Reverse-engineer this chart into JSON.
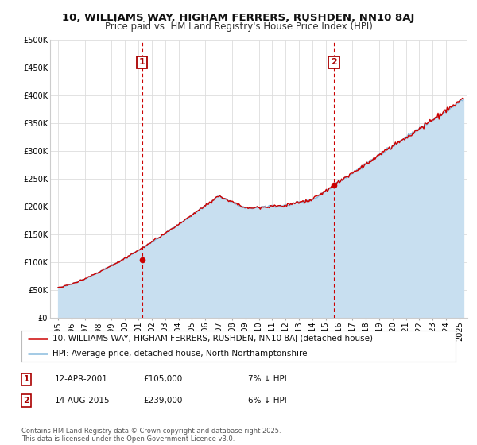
{
  "title": "10, WILLIAMS WAY, HIGHAM FERRERS, RUSHDEN, NN10 8AJ",
  "subtitle": "Price paid vs. HM Land Registry's House Price Index (HPI)",
  "ylabel_ticks": [
    "£0",
    "£50K",
    "£100K",
    "£150K",
    "£200K",
    "£250K",
    "£300K",
    "£350K",
    "£400K",
    "£450K",
    "£500K"
  ],
  "ytick_values": [
    0,
    50000,
    100000,
    150000,
    200000,
    250000,
    300000,
    350000,
    400000,
    450000,
    500000
  ],
  "ylim": [
    0,
    500000
  ],
  "xlim_start": 1994.4,
  "xlim_end": 2025.6,
  "background_color": "#ffffff",
  "plot_bg_color": "#ffffff",
  "grid_color": "#dddddd",
  "line1_color": "#cc0000",
  "line2_color": "#88bbdd",
  "line2_fill_color": "#c8dff0",
  "marker1_date": 2001.28,
  "marker1_value": 105000,
  "marker2_date": 2015.62,
  "marker2_value": 239000,
  "vline_color": "#cc0000",
  "legend_line1": "10, WILLIAMS WAY, HIGHAM FERRERS, RUSHDEN, NN10 8AJ (detached house)",
  "legend_line2": "HPI: Average price, detached house, North Northamptonshire",
  "table_row1": [
    "1",
    "12-APR-2001",
    "£105,000",
    "7% ↓ HPI"
  ],
  "table_row2": [
    "2",
    "14-AUG-2015",
    "£239,000",
    "6% ↓ HPI"
  ],
  "footnote": "Contains HM Land Registry data © Crown copyright and database right 2025.\nThis data is licensed under the Open Government Licence v3.0.",
  "title_fontsize": 9.5,
  "subtitle_fontsize": 8.5,
  "tick_fontsize": 7,
  "legend_fontsize": 7.5,
  "table_fontsize": 7.5,
  "footnote_fontsize": 6
}
